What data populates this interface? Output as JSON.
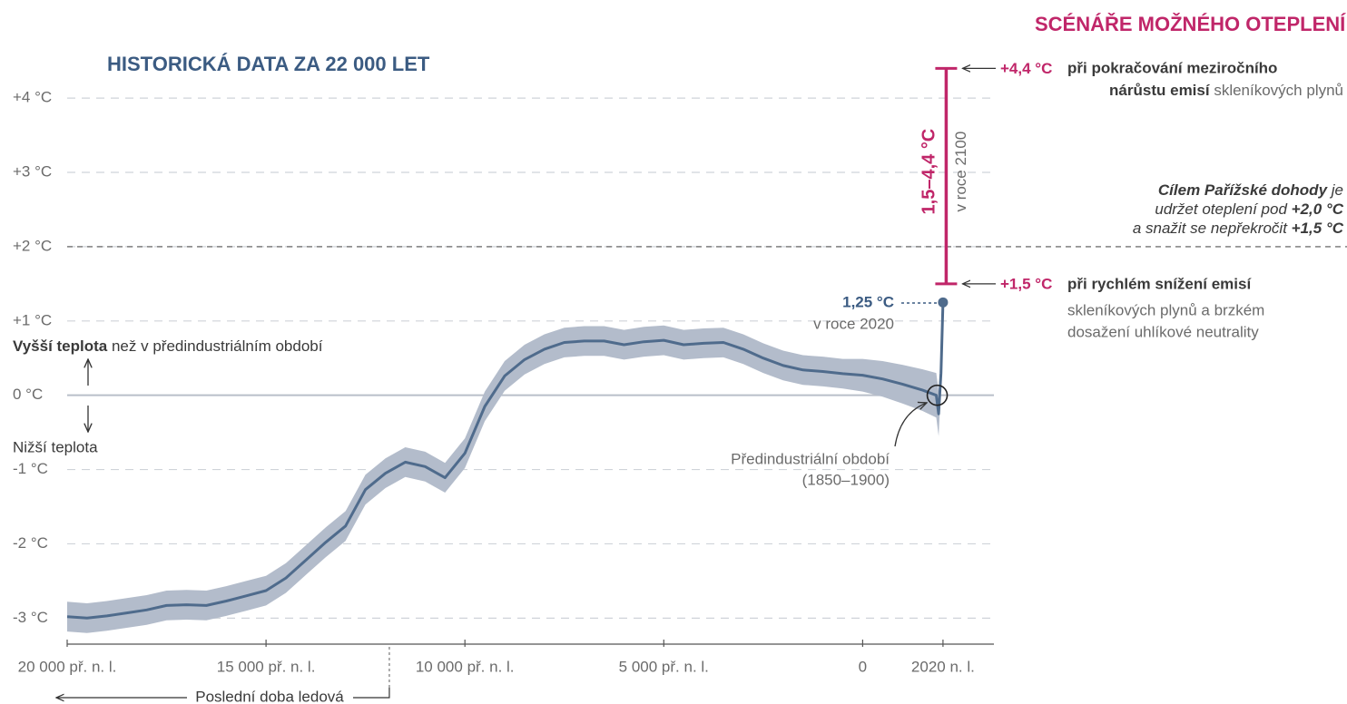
{
  "chart_data": {
    "type": "line",
    "title": "HISTORICKÁ DATA ZA 22 000 LET",
    "xlim": [
      -20000,
      3300
    ],
    "ylim": [
      -3.35,
      4.6
    ],
    "xticks": [
      {
        "value": -20000,
        "label": "20 000 př. n. l."
      },
      {
        "value": -15000,
        "label": "15 000 př. n. l."
      },
      {
        "value": -10000,
        "label": "10 000 př. n. l."
      },
      {
        "value": -5000,
        "label": "5 000 př. n. l."
      },
      0,
      {
        "value": 2020,
        "label": "2020 n. l."
      }
    ],
    "yticks": [
      {
        "value": -3,
        "label": "-3 °C"
      },
      {
        "value": -2,
        "label": "-2 °C"
      },
      {
        "value": -1,
        "label": "-1 °C"
      },
      {
        "value": 0,
        "label": "0 °C"
      },
      {
        "value": 1,
        "label": "+1 °C"
      },
      {
        "value": 2,
        "label": "+2 °C"
      },
      {
        "value": 3,
        "label": "+3 °C"
      },
      {
        "value": 4,
        "label": "+4 °C"
      }
    ],
    "grid": true,
    "series": [
      {
        "color": "#4f6b8c",
        "band_color": "#b3bccb",
        "x": [
          -20000,
          -19500,
          -19000,
          -18500,
          -18000,
          -17500,
          -17000,
          -16500,
          -16000,
          -15500,
          -15000,
          -14500,
          -14000,
          -13500,
          -13000,
          -12500,
          -12000,
          -11500,
          -11000,
          -10500,
          -10000,
          -9500,
          -9000,
          -8500,
          -8000,
          -7500,
          -7000,
          -6500,
          -6000,
          -5500,
          -5000,
          -4500,
          -4000,
          -3500,
          -3000,
          -2500,
          -2000,
          -1500,
          -1000,
          -500,
          0,
          500,
          1000,
          1500,
          1850,
          1910,
          1970,
          2020
        ],
        "values": [
          -2.98,
          -3.0,
          -2.97,
          -2.93,
          -2.89,
          -2.83,
          -2.82,
          -2.83,
          -2.77,
          -2.7,
          -2.63,
          -2.46,
          -2.22,
          -1.98,
          -1.76,
          -1.27,
          -1.05,
          -0.9,
          -0.96,
          -1.11,
          -0.78,
          -0.15,
          0.26,
          0.48,
          0.62,
          0.71,
          0.73,
          0.73,
          0.68,
          0.72,
          0.74,
          0.68,
          0.7,
          0.71,
          0.62,
          0.5,
          0.4,
          0.34,
          0.32,
          0.29,
          0.27,
          0.22,
          0.15,
          0.07,
          0.0,
          -0.25,
          0.3,
          1.25
        ],
        "errors": [
          0.2,
          0.2,
          0.2,
          0.2,
          0.2,
          0.2,
          0.2,
          0.2,
          0.2,
          0.2,
          0.2,
          0.2,
          0.2,
          0.2,
          0.2,
          0.2,
          0.2,
          0.2,
          0.2,
          0.2,
          0.2,
          0.2,
          0.2,
          0.2,
          0.2,
          0.2,
          0.2,
          0.2,
          0.2,
          0.2,
          0.2,
          0.2,
          0.2,
          0.2,
          0.2,
          0.2,
          0.2,
          0.2,
          0.2,
          0.2,
          0.22,
          0.24,
          0.26,
          0.28,
          0.3,
          0.3,
          0.2,
          0.05
        ]
      }
    ],
    "current": {
      "x": 2020,
      "value": 1.25,
      "label": "1,25 °C",
      "sublabel": "v roce 2020"
    },
    "preindustrial": {
      "x": [
        1850,
        1900
      ],
      "value": 0,
      "label": "Předindustriální období",
      "sublabel": "(1850–1900)"
    },
    "ice_age": {
      "end": -11900,
      "label": "Poslední doba ledová"
    },
    "above_label": {
      "bold": "Vyšší teplota",
      "rest": " než v předindustriálním období"
    },
    "below_label": "Nižší teplota",
    "scenarios": {
      "title": "SCÉNÁŘE MOŽNÉHO OTEPLENÍ",
      "color": "#c02669",
      "x": 2100,
      "low": 1.5,
      "high": 4.4,
      "range_label": "1,5–4,4 °C",
      "range_sublabel": "v roce 2100",
      "high_label": "+4,4 °C",
      "high_text": [
        "při pokračování meziročního",
        "nárůstu emisí",
        " skleníkových plynů"
      ],
      "low_label": "+1,5 °C",
      "low_text": [
        "při rychlém snížení emisí",
        "skleníkových plynů a brzkém",
        "dosažení uhlíkové neutrality"
      ]
    },
    "paris": {
      "threshold": 2.0,
      "text": [
        "Cílem Pařížské dohody",
        " je",
        "udržet oteplení pod ",
        "+2,0 °C",
        "a snažit se nepřekročit ",
        "+1,5 °C"
      ]
    }
  }
}
